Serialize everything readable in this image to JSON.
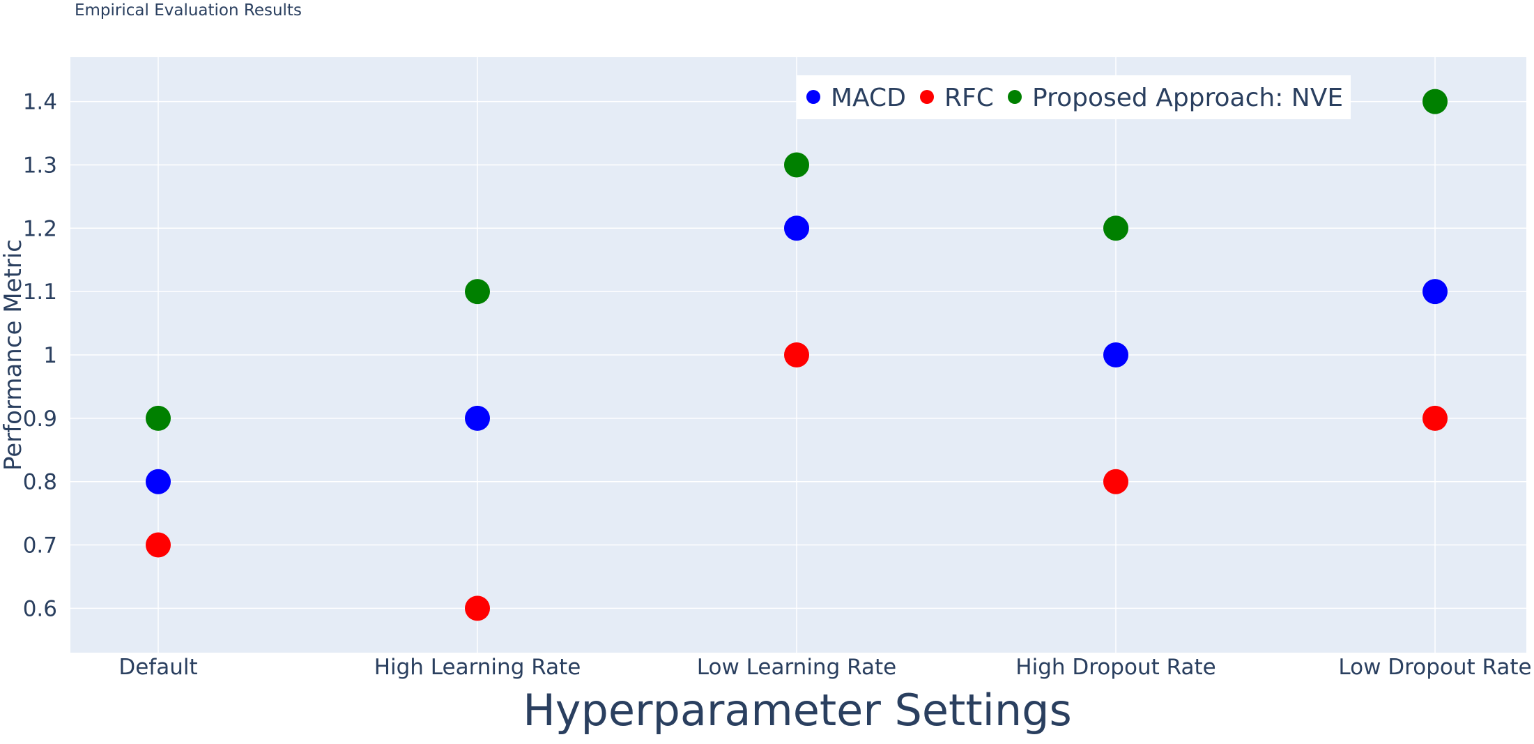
{
  "title": "Empirical Evaluation Results",
  "chart_data": {
    "type": "scatter",
    "title": "Empirical Evaluation Results",
    "xlabel": "Hyperparameter Settings",
    "ylabel": "Performance Metric",
    "categories": [
      "Default",
      "High Learning Rate",
      "Low Learning Rate",
      "High Dropout Rate",
      "Low Dropout Rate"
    ],
    "ylim": [
      0.53,
      1.47
    ],
    "yticks": [
      0.6,
      0.7,
      0.8,
      0.9,
      1,
      1.1,
      1.2,
      1.3,
      1.4
    ],
    "ytick_labels": [
      "0.6",
      "0.7",
      "0.8",
      "0.9",
      "1",
      "1.1",
      "1.2",
      "1.3",
      "1.4"
    ],
    "grid": true,
    "legend_position": "top-right",
    "series": [
      {
        "name": "MACD",
        "color": "#0000ff",
        "values": [
          0.8,
          0.9,
          1.2,
          1.0,
          1.1
        ]
      },
      {
        "name": "RFC",
        "color": "#ff0000",
        "values": [
          0.7,
          0.6,
          1.0,
          0.8,
          0.9
        ]
      },
      {
        "name": "Proposed Approach: NVE",
        "color": "#008000",
        "values": [
          0.9,
          1.1,
          1.3,
          1.2,
          1.4
        ]
      }
    ]
  }
}
